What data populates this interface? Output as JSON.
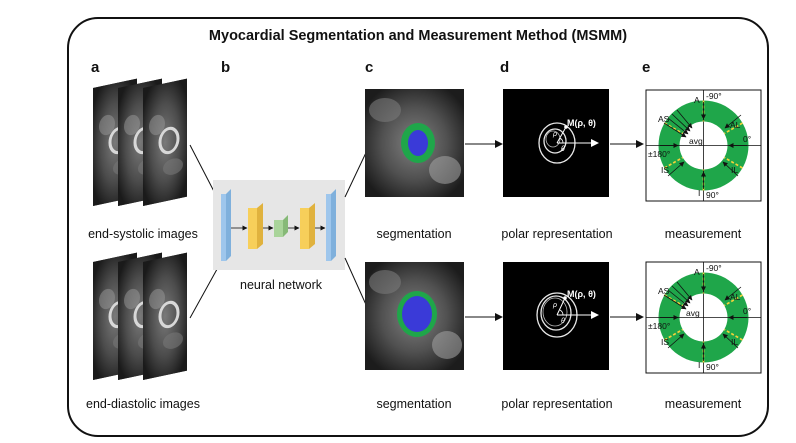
{
  "title": "Myocardial Segmentation and Measurement Method (MSMM)",
  "panels": {
    "a": "a",
    "b": "b",
    "c": "c",
    "d": "d",
    "e": "e"
  },
  "labels": {
    "end_systolic": "end-systolic images",
    "end_diastolic": "end-diastolic images",
    "neural_network": "neural network",
    "segmentation_top": "segmentation",
    "segmentation_bottom": "segmentation",
    "polar_top": "polar representation",
    "polar_bottom": "polar representation",
    "measurement_top": "measurement",
    "measurement_bottom": "measurement"
  },
  "polar": {
    "point_label": "M(ρ, θ)",
    "rho": "ρ",
    "theta": "θ"
  },
  "measurement": {
    "angle_top": "-90°",
    "angle_right": "0°",
    "angle_left": "±180°",
    "angle_bottom": "90°",
    "seg_a": "A",
    "seg_as": "AS",
    "seg_al": "AL",
    "seg_is": "IS",
    "seg_il": "IL",
    "seg_i": "I",
    "avg": "avg"
  },
  "colors": {
    "myocardium_green": "#1fa64a",
    "cavity_blue": "#3a3ad8",
    "net_blue": "#9ec6ec",
    "net_yellow": "#f7cf5a",
    "net_green": "#a9d49a",
    "dash_yellow": "#f2d23a"
  }
}
